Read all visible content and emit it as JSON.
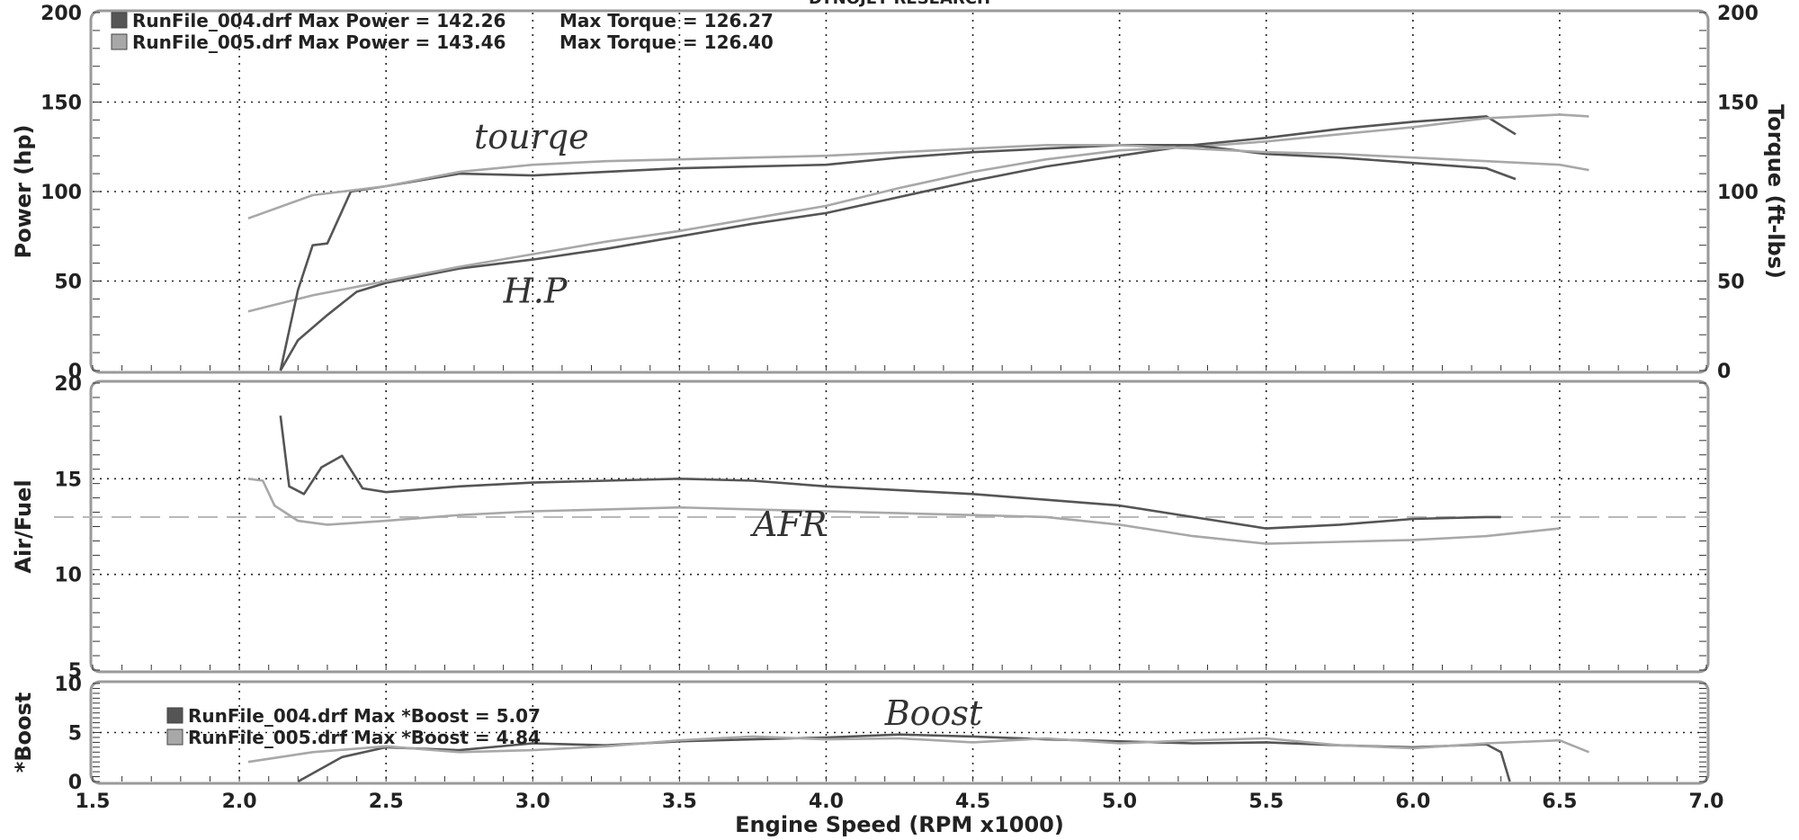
{
  "title": "DYNOJET RESEARCH",
  "xlabel": "Engine Speed (RPM x1000)",
  "colors": {
    "run004": "#555555",
    "run005": "#a8a8a8",
    "grid": "#222222",
    "panel": "#ffffff",
    "frame": "#9a9a9a"
  },
  "chart_data": [
    {
      "type": "line",
      "panel": "power-torque",
      "ylabel": "Power (hp)",
      "y2label": "Torque (ft-lbs)",
      "xlim": [
        1.5,
        7.0
      ],
      "ylim": [
        0,
        200
      ],
      "y2lim": [
        0,
        200
      ],
      "xticks": [
        "1.5",
        "2.0",
        "2.5",
        "3.0",
        "3.5",
        "4.0",
        "4.5",
        "5.0",
        "5.5",
        "6.0",
        "6.5",
        "7.0"
      ],
      "yticks": [
        "0",
        "50",
        "100",
        "150",
        "200"
      ],
      "y2ticks": [
        "0",
        "50",
        "100",
        "150",
        "200"
      ],
      "grid": true,
      "legend": [
        {
          "label": "RunFile_004.drf Max Power = 142.26",
          "extra": "Max Torque = 126.27"
        },
        {
          "label": "RunFile_005.drf Max Power = 143.46",
          "extra": "Max Torque = 126.40"
        }
      ],
      "annotations": [
        {
          "text": "tourqe",
          "x": 2.8,
          "y": 124
        },
        {
          "text": "H.P",
          "x": 2.9,
          "y": 38
        }
      ],
      "series": [
        {
          "name": "RunFile_004.drf",
          "measure": "Power",
          "x": [
            2.14,
            2.2,
            2.3,
            2.4,
            2.5,
            2.75,
            3.0,
            3.25,
            3.5,
            3.75,
            4.0,
            4.25,
            4.5,
            4.75,
            5.0,
            5.25,
            5.5,
            5.75,
            6.0,
            6.25,
            6.35
          ],
          "y": [
            0,
            17,
            31,
            44,
            49,
            57,
            62,
            68,
            75,
            82,
            88,
            97,
            106,
            114,
            120,
            126,
            130,
            135,
            139,
            142,
            132
          ]
        },
        {
          "name": "RunFile_005.drf",
          "measure": "Power",
          "x": [
            2.03,
            2.25,
            2.5,
            2.75,
            3.0,
            3.25,
            3.5,
            3.75,
            4.0,
            4.25,
            4.5,
            4.75,
            5.0,
            5.25,
            5.5,
            5.75,
            6.0,
            6.25,
            6.5,
            6.6
          ],
          "y": [
            33,
            42,
            50,
            58,
            65,
            72,
            78,
            85,
            92,
            102,
            111,
            118,
            123,
            125,
            128,
            132,
            136,
            141,
            143,
            142
          ]
        },
        {
          "name": "RunFile_004.drf",
          "measure": "Torque",
          "x": [
            2.14,
            2.2,
            2.25,
            2.3,
            2.38,
            2.5,
            2.75,
            3.0,
            3.25,
            3.5,
            3.75,
            4.0,
            4.25,
            4.5,
            4.75,
            5.0,
            5.25,
            5.5,
            5.75,
            6.0,
            6.25,
            6.35
          ],
          "y": [
            0,
            45,
            70,
            71,
            100,
            103,
            110,
            109,
            111,
            113,
            114,
            115,
            119,
            122,
            124,
            126,
            126,
            121,
            119,
            116,
            113,
            107
          ]
        },
        {
          "name": "RunFile_005.drf",
          "measure": "Torque",
          "x": [
            2.03,
            2.25,
            2.5,
            2.75,
            3.0,
            3.25,
            3.5,
            3.75,
            4.0,
            4.25,
            4.5,
            4.75,
            5.0,
            5.25,
            5.5,
            5.75,
            6.0,
            6.25,
            6.5,
            6.6
          ],
          "y": [
            85,
            98,
            103,
            111,
            115,
            117,
            118,
            119,
            120,
            122,
            124,
            126,
            126,
            124,
            122,
            121,
            119,
            117,
            115,
            112
          ]
        }
      ]
    },
    {
      "type": "line",
      "panel": "air-fuel",
      "ylabel": "Air/Fuel",
      "xlim": [
        1.5,
        7.0
      ],
      "ylim": [
        5,
        20
      ],
      "yticks": [
        "5",
        "10",
        "15",
        "20"
      ],
      "grid": true,
      "reference_line": 13.0,
      "annotations": [
        {
          "text": "AFR",
          "x": 3.75,
          "y": 12.0
        }
      ],
      "series": [
        {
          "name": "RunFile_004.drf",
          "x": [
            2.14,
            2.17,
            2.22,
            2.28,
            2.35,
            2.42,
            2.5,
            2.75,
            3.0,
            3.25,
            3.5,
            3.75,
            4.0,
            4.25,
            4.5,
            4.75,
            5.0,
            5.25,
            5.5,
            5.75,
            6.0,
            6.25,
            6.3
          ],
          "y": [
            18.3,
            14.6,
            14.2,
            15.6,
            16.2,
            14.5,
            14.3,
            14.6,
            14.8,
            14.9,
            15.0,
            14.9,
            14.6,
            14.4,
            14.2,
            13.9,
            13.6,
            13.0,
            12.4,
            12.6,
            12.9,
            13.0,
            13.0
          ]
        },
        {
          "name": "RunFile_005.drf",
          "x": [
            2.03,
            2.08,
            2.12,
            2.2,
            2.3,
            2.5,
            2.75,
            3.0,
            3.25,
            3.5,
            3.75,
            4.0,
            4.25,
            4.5,
            4.75,
            5.0,
            5.25,
            5.5,
            5.75,
            6.0,
            6.25,
            6.5
          ],
          "y": [
            15.0,
            14.9,
            13.6,
            12.8,
            12.6,
            12.8,
            13.1,
            13.3,
            13.4,
            13.5,
            13.4,
            13.3,
            13.2,
            13.1,
            13.0,
            12.6,
            12.0,
            11.6,
            11.7,
            11.8,
            12.0,
            12.4
          ]
        }
      ]
    },
    {
      "type": "line",
      "panel": "boost",
      "ylabel": "*Boost",
      "xlim": [
        1.5,
        7.0
      ],
      "ylim": [
        0,
        10
      ],
      "yticks": [
        "0",
        "5",
        "10"
      ],
      "grid": true,
      "legend": [
        {
          "label": "RunFile_004.drf Max *Boost = 5.07"
        },
        {
          "label": "RunFile_005.drf Max *Boost = 4.84"
        }
      ],
      "annotations": [
        {
          "text": "Boost",
          "x": 4.2,
          "y": 5.8
        }
      ],
      "series": [
        {
          "name": "RunFile_004.drf",
          "x": [
            2.2,
            2.35,
            2.5,
            2.75,
            3.0,
            3.25,
            3.5,
            3.75,
            4.0,
            4.25,
            4.5,
            4.75,
            5.0,
            5.25,
            5.5,
            5.75,
            6.0,
            6.25,
            6.3,
            6.33
          ],
          "y": [
            0,
            2.5,
            3.5,
            3.2,
            3.9,
            3.7,
            4.1,
            4.3,
            4.5,
            4.8,
            4.6,
            4.3,
            4.1,
            3.9,
            4.0,
            3.7,
            3.5,
            3.8,
            3.0,
            0
          ]
        },
        {
          "name": "RunFile_005.drf",
          "x": [
            2.03,
            2.25,
            2.5,
            2.75,
            3.0,
            3.25,
            3.5,
            3.75,
            4.0,
            4.25,
            4.5,
            4.75,
            5.0,
            5.25,
            5.5,
            5.75,
            6.0,
            6.25,
            6.5,
            6.6
          ],
          "y": [
            2.0,
            3.0,
            3.6,
            3.0,
            3.2,
            3.6,
            4.2,
            4.6,
            4.3,
            4.4,
            4.0,
            4.4,
            3.9,
            4.2,
            4.4,
            3.7,
            3.4,
            3.9,
            4.2,
            3.0
          ]
        }
      ]
    }
  ]
}
